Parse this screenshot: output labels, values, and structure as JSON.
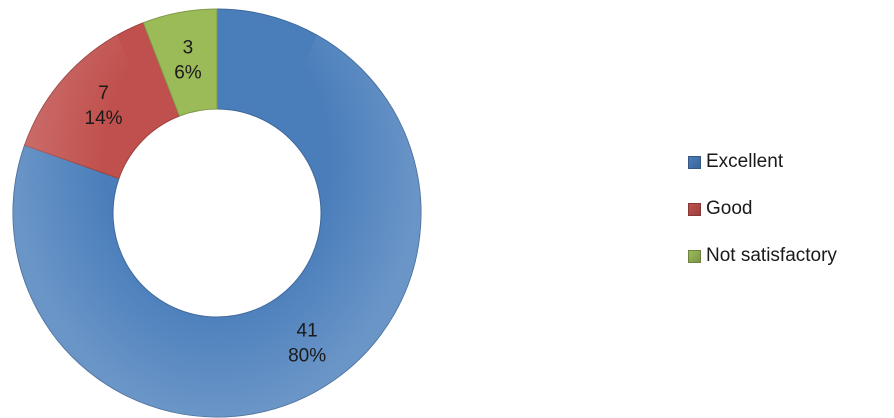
{
  "chart_data": {
    "type": "pie",
    "style": "doughnut",
    "categories": [
      "Excellent",
      "Good",
      "Not satisfactory"
    ],
    "values": [
      41,
      7,
      3
    ],
    "percentages": [
      "80%",
      "14%",
      "6%"
    ],
    "colors": [
      "#4a7ebb",
      "#c0504d",
      "#9bbb59"
    ],
    "start_angle": "top, clockwise",
    "legend_position": "right",
    "title": ""
  }
}
